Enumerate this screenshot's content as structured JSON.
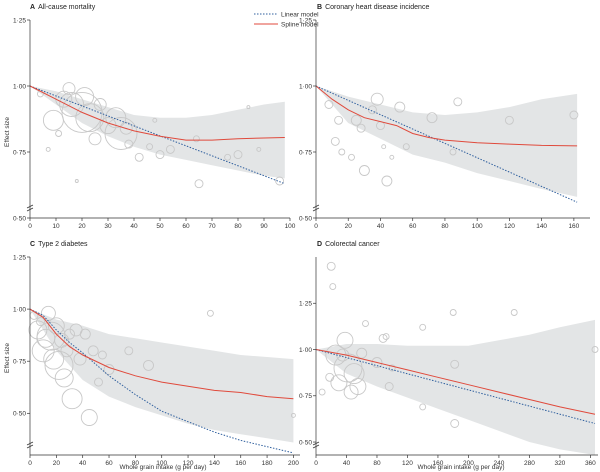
{
  "figure": {
    "legend": {
      "linear_label": "Linear model",
      "spline_label": "Spline model"
    },
    "colors": {
      "linear": "#2f5f9e",
      "spline": "#e04a3c",
      "ci_band": "#e3e5e6",
      "bubble_stroke": "#c8c8c8",
      "axis": "#333333"
    }
  },
  "chart_data": [
    {
      "type": "scatter",
      "letter": "A",
      "title": "All-cause mortality",
      "xlabel": "",
      "ylabel": "Effect size",
      "xlim": [
        0,
        100
      ],
      "ylim": [
        0.5,
        1.25
      ],
      "xticks": [
        0,
        10,
        20,
        30,
        40,
        50,
        60,
        70,
        80,
        90,
        100
      ],
      "yticks": [
        0.5,
        0.75,
        1.0,
        1.25
      ],
      "ytick_labels": [
        "0·50",
        "0·75",
        "1·00",
        "1·25"
      ],
      "show_legend": true,
      "linear": [
        [
          0,
          1.0
        ],
        [
          98,
          0.63
        ]
      ],
      "spline": [
        [
          0,
          1.0
        ],
        [
          10,
          0.95
        ],
        [
          20,
          0.9
        ],
        [
          30,
          0.86
        ],
        [
          40,
          0.83
        ],
        [
          50,
          0.81
        ],
        [
          60,
          0.795
        ],
        [
          70,
          0.795
        ],
        [
          80,
          0.8
        ],
        [
          90,
          0.803
        ],
        [
          98,
          0.805
        ]
      ],
      "ci_upper": [
        [
          0,
          1.0
        ],
        [
          10,
          0.98
        ],
        [
          20,
          0.95
        ],
        [
          30,
          0.92
        ],
        [
          40,
          0.89
        ],
        [
          50,
          0.88
        ],
        [
          60,
          0.88
        ],
        [
          70,
          0.89
        ],
        [
          80,
          0.91
        ],
        [
          90,
          0.93
        ],
        [
          98,
          0.94
        ]
      ],
      "ci_lower": [
        [
          0,
          1.0
        ],
        [
          10,
          0.93
        ],
        [
          20,
          0.86
        ],
        [
          30,
          0.81
        ],
        [
          40,
          0.77
        ],
        [
          50,
          0.74
        ],
        [
          60,
          0.72
        ],
        [
          70,
          0.7
        ],
        [
          80,
          0.68
        ],
        [
          90,
          0.66
        ],
        [
          98,
          0.65
        ]
      ],
      "bubbles": [
        [
          4,
          0.97,
          3
        ],
        [
          7,
          0.76,
          2
        ],
        [
          9,
          0.87,
          10
        ],
        [
          11,
          0.82,
          3
        ],
        [
          13,
          0.95,
          8
        ],
        [
          15,
          0.99,
          6
        ],
        [
          16,
          0.93,
          12
        ],
        [
          18,
          0.64,
          1.5
        ],
        [
          20,
          0.9,
          20
        ],
        [
          21,
          0.96,
          9
        ],
        [
          23,
          0.88,
          14
        ],
        [
          25,
          0.8,
          6
        ],
        [
          27,
          0.93,
          6
        ],
        [
          30,
          0.85,
          8
        ],
        [
          33,
          0.88,
          10
        ],
        [
          35,
          0.82,
          16
        ],
        [
          37,
          0.84,
          6
        ],
        [
          38,
          0.78,
          4
        ],
        [
          42,
          0.73,
          4
        ],
        [
          46,
          0.77,
          3
        ],
        [
          48,
          0.87,
          2
        ],
        [
          50,
          0.74,
          4
        ],
        [
          54,
          0.76,
          4
        ],
        [
          64,
          0.8,
          3
        ],
        [
          65,
          0.63,
          4
        ],
        [
          76,
          0.73,
          3
        ],
        [
          80,
          0.74,
          4
        ],
        [
          84,
          0.92,
          1.5
        ],
        [
          88,
          0.76,
          2
        ],
        [
          96,
          0.64,
          4
        ]
      ]
    },
    {
      "type": "scatter",
      "letter": "B",
      "title": "Coronary heart disease incidence",
      "xlabel": "",
      "ylabel": "",
      "xlim": [
        0,
        170
      ],
      "ylim": [
        0.5,
        1.25
      ],
      "xticks": [
        0,
        20,
        40,
        60,
        80,
        100,
        120,
        140,
        160
      ],
      "yticks": [
        0.5,
        0.75,
        1.0,
        1.25
      ],
      "ytick_labels": [
        "0·50",
        "0·75",
        "1·00",
        "1·25"
      ],
      "show_legend": false,
      "linear": [
        [
          0,
          1.0
        ],
        [
          162,
          0.56
        ]
      ],
      "spline": [
        [
          0,
          1.0
        ],
        [
          10,
          0.95
        ],
        [
          20,
          0.91
        ],
        [
          30,
          0.88
        ],
        [
          40,
          0.865
        ],
        [
          50,
          0.85
        ],
        [
          60,
          0.82
        ],
        [
          70,
          0.805
        ],
        [
          80,
          0.795
        ],
        [
          100,
          0.785
        ],
        [
          120,
          0.78
        ],
        [
          140,
          0.775
        ],
        [
          162,
          0.773
        ]
      ],
      "ci_upper": [
        [
          0,
          1.0
        ],
        [
          20,
          0.96
        ],
        [
          40,
          0.93
        ],
        [
          60,
          0.9
        ],
        [
          80,
          0.89
        ],
        [
          100,
          0.9
        ],
        [
          120,
          0.92
        ],
        [
          140,
          0.95
        ],
        [
          162,
          0.97
        ]
      ],
      "ci_lower": [
        [
          0,
          1.0
        ],
        [
          20,
          0.86
        ],
        [
          40,
          0.8
        ],
        [
          60,
          0.74
        ],
        [
          80,
          0.71
        ],
        [
          100,
          0.67
        ],
        [
          120,
          0.64
        ],
        [
          140,
          0.61
        ],
        [
          162,
          0.58
        ]
      ],
      "bubbles": [
        [
          8,
          0.93,
          4
        ],
        [
          12,
          0.79,
          4
        ],
        [
          14,
          0.87,
          4
        ],
        [
          16,
          0.75,
          3
        ],
        [
          22,
          0.73,
          3
        ],
        [
          25,
          0.87,
          5
        ],
        [
          28,
          0.84,
          4
        ],
        [
          30,
          0.68,
          5
        ],
        [
          35,
          0.91,
          4
        ],
        [
          38,
          0.95,
          6
        ],
        [
          40,
          0.85,
          4
        ],
        [
          42,
          0.77,
          2
        ],
        [
          44,
          0.64,
          5
        ],
        [
          47,
          0.73,
          2
        ],
        [
          52,
          0.92,
          5
        ],
        [
          56,
          0.77,
          3
        ],
        [
          72,
          0.88,
          5
        ],
        [
          85,
          0.75,
          3
        ],
        [
          88,
          0.94,
          4
        ],
        [
          120,
          0.87,
          4
        ],
        [
          160,
          0.89,
          4
        ]
      ]
    },
    {
      "type": "scatter",
      "letter": "C",
      "title": "Type 2 diabetes",
      "xlabel": "Whole grain intake (g per day)",
      "ylabel": "Effect size",
      "xlim": [
        0,
        205
      ],
      "ylim": [
        0.3,
        1.25
      ],
      "xticks": [
        0,
        20,
        40,
        60,
        80,
        100,
        120,
        140,
        160,
        180,
        200
      ],
      "yticks": [
        0.5,
        0.75,
        1.0,
        1.25
      ],
      "ytick_labels": [
        "0·50",
        "0·75",
        "1·00",
        "1·25"
      ],
      "show_legend": false,
      "linear": [
        [
          0,
          1.0
        ],
        [
          10,
          0.97
        ],
        [
          20,
          0.9
        ],
        [
          30,
          0.84
        ],
        [
          40,
          0.79
        ],
        [
          60,
          0.68
        ],
        [
          80,
          0.59
        ],
        [
          100,
          0.51
        ],
        [
          120,
          0.46
        ],
        [
          140,
          0.41
        ],
        [
          160,
          0.37
        ],
        [
          180,
          0.34
        ],
        [
          200,
          0.31
        ]
      ],
      "spline": [
        [
          0,
          1.0
        ],
        [
          10,
          0.96
        ],
        [
          20,
          0.88
        ],
        [
          30,
          0.82
        ],
        [
          40,
          0.78
        ],
        [
          60,
          0.72
        ],
        [
          80,
          0.68
        ],
        [
          100,
          0.65
        ],
        [
          120,
          0.63
        ],
        [
          140,
          0.61
        ],
        [
          160,
          0.6
        ],
        [
          180,
          0.58
        ],
        [
          200,
          0.57
        ]
      ],
      "ci_upper": [
        [
          0,
          1.0
        ],
        [
          20,
          0.95
        ],
        [
          40,
          0.92
        ],
        [
          60,
          0.88
        ],
        [
          80,
          0.86
        ],
        [
          100,
          0.84
        ],
        [
          120,
          0.82
        ],
        [
          140,
          0.8
        ],
        [
          160,
          0.78
        ],
        [
          180,
          0.77
        ],
        [
          200,
          0.76
        ]
      ],
      "ci_lower": [
        [
          0,
          1.0
        ],
        [
          20,
          0.8
        ],
        [
          40,
          0.66
        ],
        [
          60,
          0.58
        ],
        [
          80,
          0.53
        ],
        [
          100,
          0.49
        ],
        [
          120,
          0.45
        ],
        [
          140,
          0.42
        ],
        [
          160,
          0.4
        ],
        [
          180,
          0.38
        ],
        [
          200,
          0.36
        ]
      ],
      "bubbles": [
        [
          3,
          0.97,
          4
        ],
        [
          6,
          0.9,
          9
        ],
        [
          8,
          0.94,
          4
        ],
        [
          10,
          0.8,
          11
        ],
        [
          12,
          0.86,
          9
        ],
        [
          14,
          0.98,
          7
        ],
        [
          16,
          0.87,
          14
        ],
        [
          18,
          0.76,
          10
        ],
        [
          20,
          0.92,
          8
        ],
        [
          22,
          0.73,
          14
        ],
        [
          24,
          0.85,
          7
        ],
        [
          26,
          0.67,
          9
        ],
        [
          28,
          0.8,
          6
        ],
        [
          30,
          0.88,
          5
        ],
        [
          32,
          0.57,
          10
        ],
        [
          35,
          0.9,
          6
        ],
        [
          38,
          0.76,
          6
        ],
        [
          42,
          0.88,
          5
        ],
        [
          45,
          0.48,
          8
        ],
        [
          48,
          0.8,
          5
        ],
        [
          52,
          0.65,
          4
        ],
        [
          55,
          0.78,
          4
        ],
        [
          60,
          0.71,
          5
        ],
        [
          75,
          0.8,
          4
        ],
        [
          90,
          0.73,
          5
        ],
        [
          137,
          0.98,
          3
        ],
        [
          200,
          0.49,
          2
        ]
      ]
    },
    {
      "type": "scatter",
      "letter": "D",
      "title": "Colorectal cancer",
      "xlabel": "Whole grain intake (g per day)",
      "ylabel": "",
      "xlim": [
        0,
        370
      ],
      "ylim": [
        0.43,
        1.5
      ],
      "xticks": [
        0,
        40,
        80,
        120,
        160,
        200,
        240,
        280,
        320,
        360
      ],
      "yticks": [
        0.5,
        0.75,
        1.0,
        1.25
      ],
      "ytick_labels": [
        "0·50",
        "0·75",
        "1·00",
        "1·25"
      ],
      "show_legend": false,
      "linear": [
        [
          0,
          1.0
        ],
        [
          366,
          0.6
        ]
      ],
      "spline": [
        [
          0,
          1.0
        ],
        [
          40,
          0.97
        ],
        [
          80,
          0.93
        ],
        [
          120,
          0.89
        ],
        [
          160,
          0.85
        ],
        [
          200,
          0.81
        ],
        [
          240,
          0.77
        ],
        [
          280,
          0.73
        ],
        [
          320,
          0.69
        ],
        [
          366,
          0.65
        ]
      ],
      "ci_upper": [
        [
          0,
          1.0
        ],
        [
          40,
          1.03
        ],
        [
          80,
          1.03
        ],
        [
          120,
          1.02
        ],
        [
          160,
          1.02
        ],
        [
          200,
          1.02
        ],
        [
          240,
          1.05
        ],
        [
          280,
          1.08
        ],
        [
          320,
          1.12
        ],
        [
          366,
          1.16
        ]
      ],
      "ci_lower": [
        [
          0,
          1.0
        ],
        [
          40,
          0.87
        ],
        [
          80,
          0.8
        ],
        [
          120,
          0.74
        ],
        [
          160,
          0.68
        ],
        [
          200,
          0.62
        ],
        [
          240,
          0.56
        ],
        [
          280,
          0.5
        ],
        [
          320,
          0.46
        ],
        [
          366,
          0.43
        ]
      ],
      "bubbles": [
        [
          8,
          0.77,
          3
        ],
        [
          18,
          0.85,
          4
        ],
        [
          20,
          1.45,
          4
        ],
        [
          22,
          1.34,
          3
        ],
        [
          26,
          0.97,
          10
        ],
        [
          30,
          0.82,
          8
        ],
        [
          35,
          0.97,
          6
        ],
        [
          38,
          1.05,
          8
        ],
        [
          42,
          0.9,
          14
        ],
        [
          46,
          0.77,
          7
        ],
        [
          50,
          0.87,
          10
        ],
        [
          55,
          0.8,
          8
        ],
        [
          60,
          0.98,
          5
        ],
        [
          65,
          1.14,
          3
        ],
        [
          80,
          0.93,
          5
        ],
        [
          88,
          1.06,
          4
        ],
        [
          92,
          1.07,
          3
        ],
        [
          96,
          0.8,
          4
        ],
        [
          100,
          0.9,
          3
        ],
        [
          140,
          0.69,
          3
        ],
        [
          140,
          1.12,
          3
        ],
        [
          180,
          1.2,
          3
        ],
        [
          182,
          0.92,
          4
        ],
        [
          182,
          0.6,
          4
        ],
        [
          260,
          1.2,
          3
        ],
        [
          366,
          1.0,
          3
        ]
      ]
    }
  ]
}
